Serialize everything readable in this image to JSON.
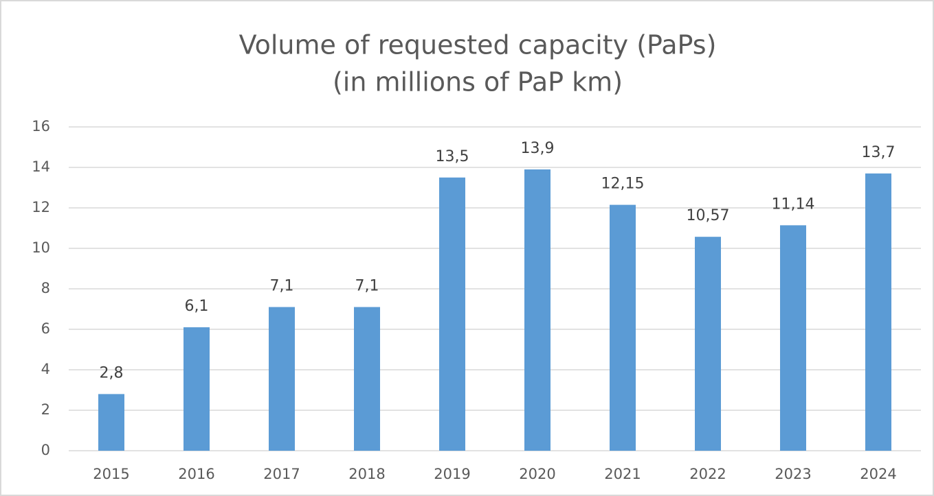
{
  "chart_data": {
    "type": "bar",
    "title": "Volume of requested capacity (PaPs)",
    "subtitle": "(in millions of PaP km)",
    "categories": [
      "2015",
      "2016",
      "2017",
      "2018",
      "2019",
      "2020",
      "2021",
      "2022",
      "2023",
      "2024"
    ],
    "values": [
      2.8,
      6.1,
      7.1,
      7.1,
      13.5,
      13.9,
      12.15,
      10.57,
      11.14,
      13.7
    ],
    "value_labels": [
      "2,8",
      "6,1",
      "7,1",
      "7,1",
      "13,5",
      "13,9",
      "12,15",
      "10,57",
      "11,14",
      "13,7"
    ],
    "color": "#5b9bd5",
    "ylim": [
      0,
      16
    ],
    "yticks": [
      0,
      2,
      4,
      6,
      8,
      10,
      12,
      14,
      16
    ],
    "grid": true
  }
}
